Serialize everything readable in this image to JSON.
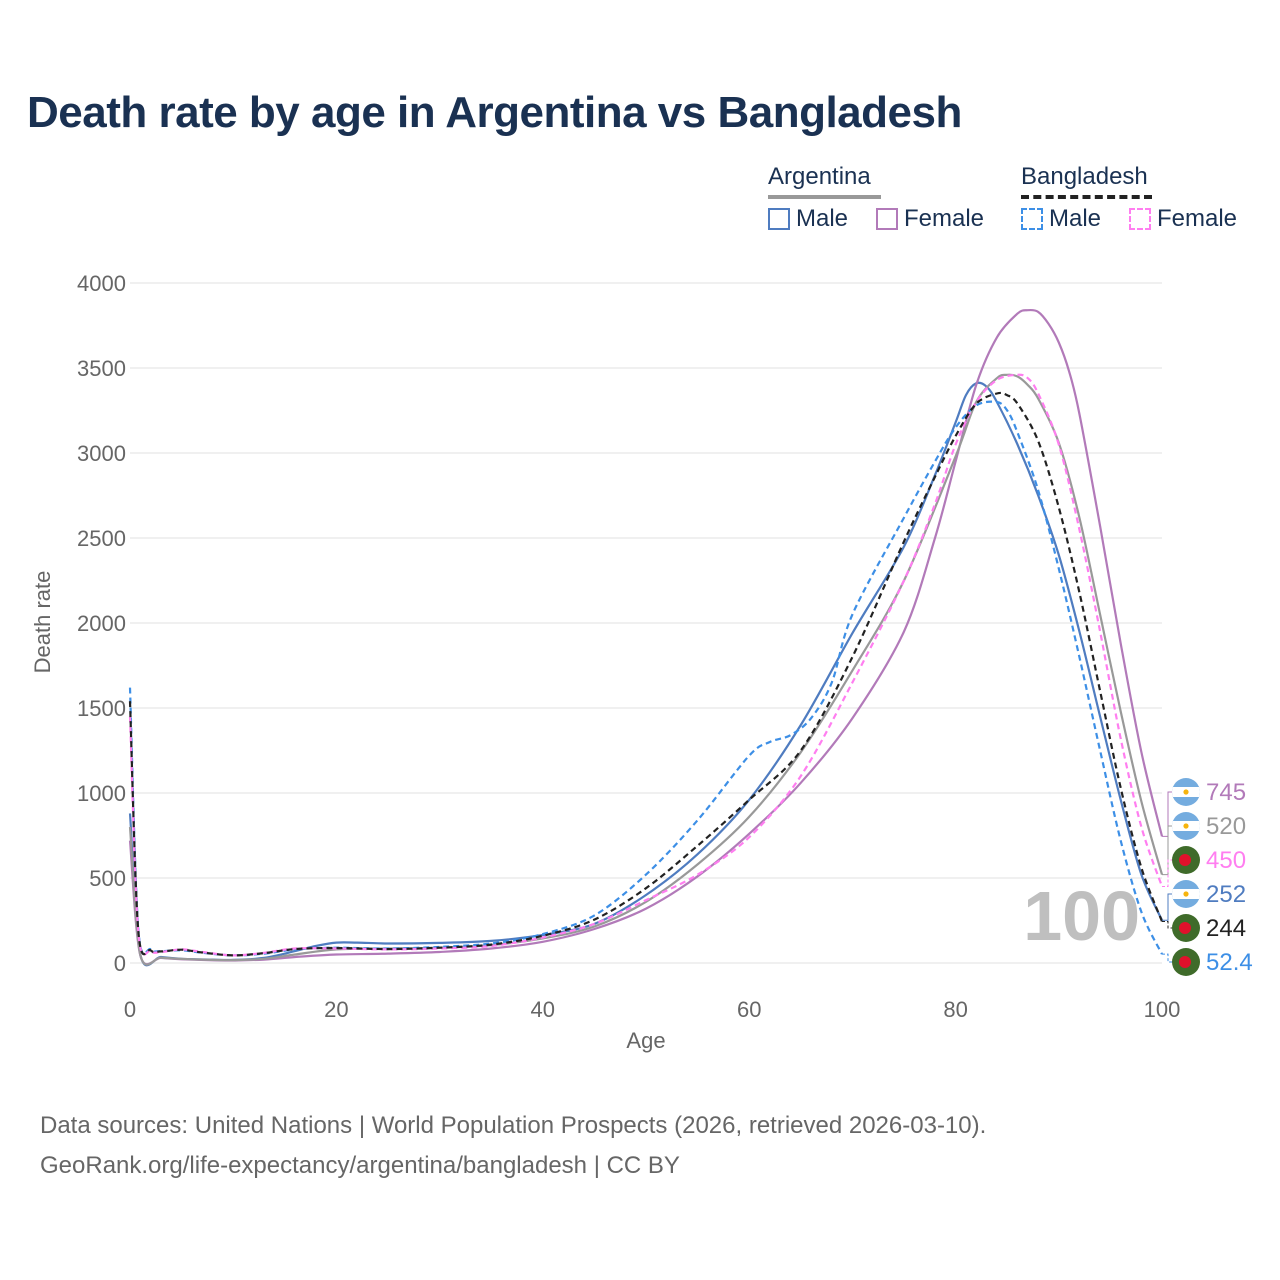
{
  "title": "Death rate by age in Argentina vs Bangladesh",
  "legend": {
    "groups": [
      {
        "name": "Argentina",
        "line_color": "#999999",
        "dash": false
      },
      {
        "name": "Bangladesh",
        "line_color": "#222222",
        "dash": true
      }
    ],
    "items": [
      {
        "label": "Male",
        "color": "#4f7cc0",
        "dash": false
      },
      {
        "label": "Female",
        "color": "#b27ab9",
        "dash": false
      },
      {
        "label": "Male",
        "color": "#3d8fe6",
        "dash": true
      },
      {
        "label": "Female",
        "color": "#ff7ef0",
        "dash": true
      }
    ]
  },
  "year_watermark": "100",
  "source_lines": [
    "Data sources: United Nations | World Population Prospects (2026, retrieved 2026-03-10).",
    "GeoRank.org/life-expectancy/argentina/bangladesh | CC BY"
  ],
  "chart_data": {
    "type": "line",
    "title": "Death rate by age in Argentina vs Bangladesh",
    "xlabel": "Age",
    "ylabel": "Death rate",
    "xlim": [
      0,
      100
    ],
    "ylim": [
      0,
      4000
    ],
    "xticks": [
      0,
      20,
      40,
      60,
      80,
      100
    ],
    "yticks": [
      0,
      500,
      1000,
      1500,
      2000,
      2500,
      3000,
      3500,
      4000
    ],
    "series": [
      {
        "name": "Argentina Male",
        "color": "#4f7cc0",
        "dash": false,
        "flag": "argentina",
        "end_label": "252",
        "points": [
          [
            0,
            880
          ],
          [
            1,
            50
          ],
          [
            3,
            35
          ],
          [
            5,
            25
          ],
          [
            8,
            20
          ],
          [
            10,
            18
          ],
          [
            13,
            30
          ],
          [
            16,
            70
          ],
          [
            18,
            100
          ],
          [
            20,
            120
          ],
          [
            22,
            120
          ],
          [
            25,
            115
          ],
          [
            30,
            118
          ],
          [
            35,
            130
          ],
          [
            40,
            165
          ],
          [
            45,
            230
          ],
          [
            50,
            400
          ],
          [
            55,
            640
          ],
          [
            60,
            960
          ],
          [
            65,
            1400
          ],
          [
            70,
            1940
          ],
          [
            75,
            2450
          ],
          [
            78,
            2870
          ],
          [
            80,
            3180
          ],
          [
            81,
            3340
          ],
          [
            82,
            3410
          ],
          [
            83,
            3390
          ],
          [
            84,
            3300
          ],
          [
            86,
            3050
          ],
          [
            88,
            2750
          ],
          [
            90,
            2400
          ],
          [
            92,
            1950
          ],
          [
            94,
            1450
          ],
          [
            96,
            960
          ],
          [
            98,
            520
          ],
          [
            100,
            252
          ]
        ]
      },
      {
        "name": "Argentina Female",
        "color": "#b27ab9",
        "dash": false,
        "flag": "argentina",
        "end_label": "745",
        "points": [
          [
            0,
            720
          ],
          [
            1,
            45
          ],
          [
            3,
            30
          ],
          [
            5,
            22
          ],
          [
            8,
            16
          ],
          [
            10,
            15
          ],
          [
            13,
            20
          ],
          [
            16,
            35
          ],
          [
            20,
            50
          ],
          [
            25,
            55
          ],
          [
            30,
            65
          ],
          [
            35,
            85
          ],
          [
            40,
            125
          ],
          [
            45,
            200
          ],
          [
            50,
            320
          ],
          [
            55,
            510
          ],
          [
            60,
            760
          ],
          [
            65,
            1060
          ],
          [
            70,
            1440
          ],
          [
            75,
            1950
          ],
          [
            78,
            2500
          ],
          [
            80,
            2950
          ],
          [
            82,
            3400
          ],
          [
            84,
            3680
          ],
          [
            86,
            3820
          ],
          [
            87,
            3840
          ],
          [
            88,
            3830
          ],
          [
            89,
            3760
          ],
          [
            90,
            3650
          ],
          [
            91,
            3480
          ],
          [
            92,
            3230
          ],
          [
            94,
            2570
          ],
          [
            96,
            1880
          ],
          [
            98,
            1240
          ],
          [
            100,
            745
          ]
        ]
      },
      {
        "name": "Argentina Total",
        "color": "#999999",
        "dash": false,
        "flag": "argentina",
        "end_label": "520",
        "points": [
          [
            0,
            800
          ],
          [
            1,
            48
          ],
          [
            3,
            32
          ],
          [
            5,
            24
          ],
          [
            8,
            18
          ],
          [
            10,
            17
          ],
          [
            13,
            25
          ],
          [
            16,
            50
          ],
          [
            20,
            80
          ],
          [
            25,
            85
          ],
          [
            30,
            90
          ],
          [
            35,
            105
          ],
          [
            40,
            145
          ],
          [
            45,
            215
          ],
          [
            50,
            360
          ],
          [
            55,
            580
          ],
          [
            60,
            860
          ],
          [
            65,
            1240
          ],
          [
            70,
            1720
          ],
          [
            75,
            2250
          ],
          [
            80,
            2980
          ],
          [
            82,
            3300
          ],
          [
            84,
            3440
          ],
          [
            85,
            3460
          ],
          [
            86,
            3450
          ],
          [
            87,
            3400
          ],
          [
            88,
            3320
          ],
          [
            90,
            3060
          ],
          [
            92,
            2620
          ],
          [
            94,
            2050
          ],
          [
            96,
            1480
          ],
          [
            98,
            950
          ],
          [
            100,
            520
          ]
        ]
      },
      {
        "name": "Bangladesh Male",
        "color": "#3d8fe6",
        "dash": true,
        "flag": "bangladesh",
        "end_label": "52.4",
        "points": [
          [
            0,
            1620
          ],
          [
            0.8,
            200
          ],
          [
            2,
            80
          ],
          [
            3,
            70
          ],
          [
            5,
            75
          ],
          [
            7,
            60
          ],
          [
            10,
            45
          ],
          [
            13,
            55
          ],
          [
            16,
            80
          ],
          [
            20,
            90
          ],
          [
            25,
            85
          ],
          [
            30,
            95
          ],
          [
            35,
            115
          ],
          [
            40,
            170
          ],
          [
            45,
            280
          ],
          [
            50,
            520
          ],
          [
            55,
            840
          ],
          [
            60,
            1220
          ],
          [
            62,
            1300
          ],
          [
            64,
            1340
          ],
          [
            66,
            1440
          ],
          [
            68,
            1650
          ],
          [
            70,
            2050
          ],
          [
            75,
            2620
          ],
          [
            78,
            2950
          ],
          [
            80,
            3150
          ],
          [
            82,
            3280
          ],
          [
            84,
            3300
          ],
          [
            85,
            3250
          ],
          [
            86,
            3120
          ],
          [
            88,
            2780
          ],
          [
            90,
            2320
          ],
          [
            92,
            1800
          ],
          [
            94,
            1250
          ],
          [
            96,
            720
          ],
          [
            98,
            300
          ],
          [
            100,
            52.4
          ]
        ]
      },
      {
        "name": "Bangladesh Female",
        "color": "#ff7ef0",
        "dash": true,
        "flag": "bangladesh",
        "end_label": "450",
        "points": [
          [
            0,
            1450
          ],
          [
            0.8,
            180
          ],
          [
            2,
            70
          ],
          [
            3,
            65
          ],
          [
            5,
            80
          ],
          [
            7,
            65
          ],
          [
            10,
            45
          ],
          [
            13,
            60
          ],
          [
            16,
            85
          ],
          [
            20,
            85
          ],
          [
            25,
            80
          ],
          [
            30,
            85
          ],
          [
            35,
            100
          ],
          [
            40,
            150
          ],
          [
            45,
            230
          ],
          [
            50,
            370
          ],
          [
            55,
            520
          ],
          [
            60,
            740
          ],
          [
            65,
            1100
          ],
          [
            70,
            1650
          ],
          [
            75,
            2250
          ],
          [
            78,
            2700
          ],
          [
            80,
            3050
          ],
          [
            82,
            3300
          ],
          [
            84,
            3430
          ],
          [
            86,
            3460
          ],
          [
            87,
            3440
          ],
          [
            88,
            3350
          ],
          [
            90,
            3050
          ],
          [
            92,
            2550
          ],
          [
            94,
            1950
          ],
          [
            96,
            1320
          ],
          [
            98,
            800
          ],
          [
            100,
            450
          ]
        ]
      },
      {
        "name": "Bangladesh Total",
        "color": "#222222",
        "dash": true,
        "flag": "bangladesh",
        "end_label": "244",
        "points": [
          [
            0,
            1540
          ],
          [
            0.8,
            190
          ],
          [
            2,
            75
          ],
          [
            3,
            68
          ],
          [
            5,
            78
          ],
          [
            7,
            62
          ],
          [
            10,
            45
          ],
          [
            13,
            58
          ],
          [
            16,
            82
          ],
          [
            20,
            88
          ],
          [
            25,
            82
          ],
          [
            30,
            90
          ],
          [
            35,
            108
          ],
          [
            40,
            160
          ],
          [
            45,
            255
          ],
          [
            50,
            440
          ],
          [
            55,
            690
          ],
          [
            60,
            960
          ],
          [
            65,
            1250
          ],
          [
            70,
            1800
          ],
          [
            75,
            2480
          ],
          [
            78,
            2860
          ],
          [
            80,
            3100
          ],
          [
            82,
            3290
          ],
          [
            84,
            3350
          ],
          [
            85,
            3340
          ],
          [
            86,
            3290
          ],
          [
            88,
            3070
          ],
          [
            90,
            2680
          ],
          [
            92,
            2180
          ],
          [
            94,
            1600
          ],
          [
            96,
            1030
          ],
          [
            98,
            560
          ],
          [
            100,
            244
          ]
        ]
      }
    ]
  }
}
